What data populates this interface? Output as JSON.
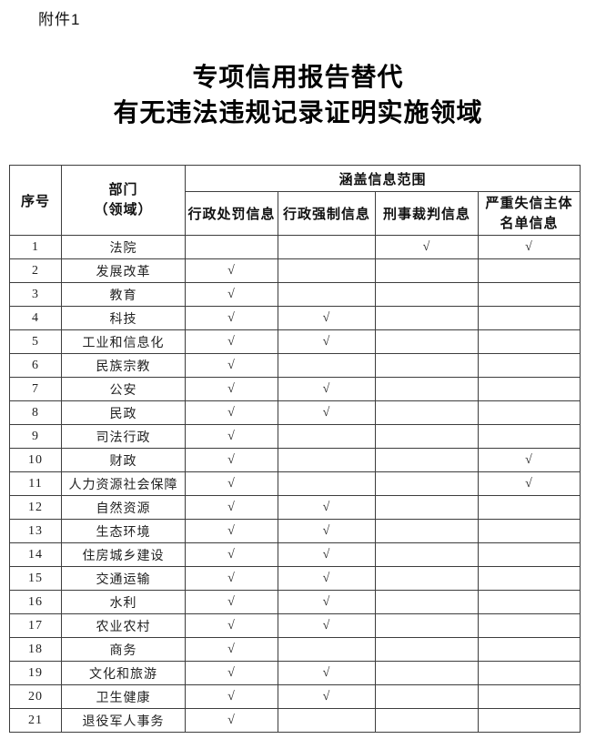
{
  "page": {
    "attachment_label": "附件1",
    "title_line1": "专项信用报告替代",
    "title_line2": "有无违法违规记录证明实施领域"
  },
  "table": {
    "header": {
      "col_index": "序号",
      "col_department": "部门\n（领域）",
      "group_header": "涵盖信息范围",
      "info_columns": [
        "行政处罚信息",
        "行政强制信息",
        "刑事裁判信息",
        "严重失信主体\n名单信息"
      ]
    },
    "checkmark": "√",
    "rows": [
      {
        "index": "1",
        "department": "法院",
        "marks": [
          false,
          false,
          true,
          true
        ]
      },
      {
        "index": "2",
        "department": "发展改革",
        "marks": [
          true,
          false,
          false,
          false
        ]
      },
      {
        "index": "3",
        "department": "教育",
        "marks": [
          true,
          false,
          false,
          false
        ]
      },
      {
        "index": "4",
        "department": "科技",
        "marks": [
          true,
          true,
          false,
          false
        ]
      },
      {
        "index": "5",
        "department": "工业和信息化",
        "marks": [
          true,
          true,
          false,
          false
        ]
      },
      {
        "index": "6",
        "department": "民族宗教",
        "marks": [
          true,
          false,
          false,
          false
        ]
      },
      {
        "index": "7",
        "department": "公安",
        "marks": [
          true,
          true,
          false,
          false
        ]
      },
      {
        "index": "8",
        "department": "民政",
        "marks": [
          true,
          true,
          false,
          false
        ]
      },
      {
        "index": "9",
        "department": "司法行政",
        "marks": [
          true,
          false,
          false,
          false
        ]
      },
      {
        "index": "10",
        "department": "财政",
        "marks": [
          true,
          false,
          false,
          true
        ]
      },
      {
        "index": "11",
        "department": "人力资源社会保障",
        "marks": [
          true,
          false,
          false,
          true
        ]
      },
      {
        "index": "12",
        "department": "自然资源",
        "marks": [
          true,
          true,
          false,
          false
        ]
      },
      {
        "index": "13",
        "department": "生态环境",
        "marks": [
          true,
          true,
          false,
          false
        ]
      },
      {
        "index": "14",
        "department": "住房城乡建设",
        "marks": [
          true,
          true,
          false,
          false
        ]
      },
      {
        "index": "15",
        "department": "交通运输",
        "marks": [
          true,
          true,
          false,
          false
        ]
      },
      {
        "index": "16",
        "department": "水利",
        "marks": [
          true,
          true,
          false,
          false
        ]
      },
      {
        "index": "17",
        "department": "农业农村",
        "marks": [
          true,
          true,
          false,
          false
        ]
      },
      {
        "index": "18",
        "department": "商务",
        "marks": [
          true,
          false,
          false,
          false
        ]
      },
      {
        "index": "19",
        "department": "文化和旅游",
        "marks": [
          true,
          true,
          false,
          false
        ]
      },
      {
        "index": "20",
        "department": "卫生健康",
        "marks": [
          true,
          true,
          false,
          false
        ]
      },
      {
        "index": "21",
        "department": "退役军人事务",
        "marks": [
          true,
          false,
          false,
          false
        ]
      }
    ]
  }
}
